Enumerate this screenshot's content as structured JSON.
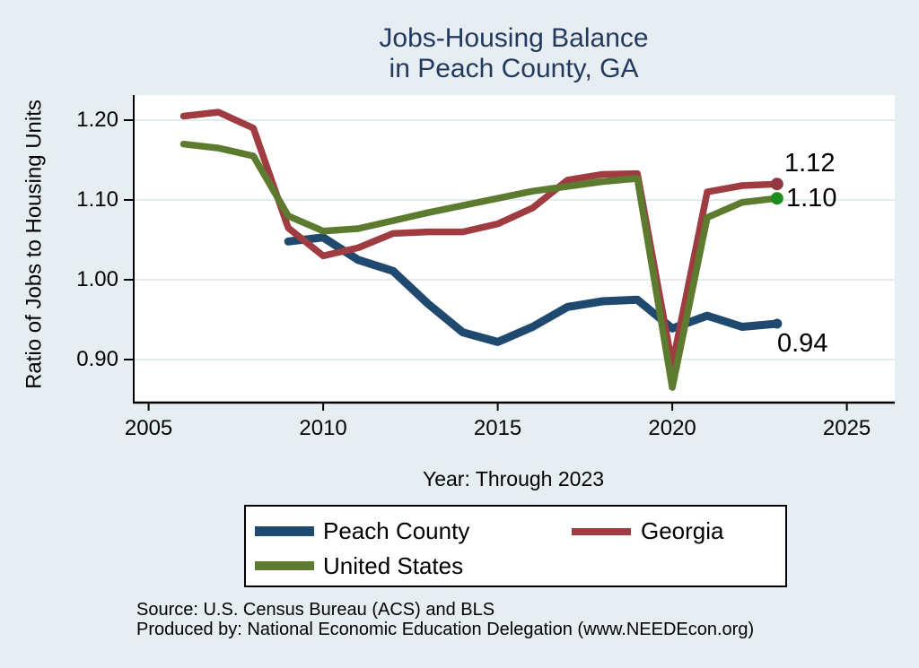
{
  "title": {
    "line1": "Jobs-Housing Balance",
    "line2": "in Peach County, GA"
  },
  "colors": {
    "background": "#e7eef1",
    "plot_background": "#ffffff",
    "gridline": "#e2ecef",
    "axis": "#000000",
    "title": "#24395f"
  },
  "chart_data": {
    "type": "line",
    "title": "Jobs-Housing Balance in Peach County, GA",
    "xlabel": "Year: Through 2023",
    "ylabel": "Ratio of Jobs to Housing Units",
    "grid": "horizontal",
    "legend_position": "bottom",
    "xlim": [
      2004.5,
      2026.4
    ],
    "ylim": [
      0.85,
      1.23
    ],
    "x_ticks": [
      "2005",
      "2010",
      "2015",
      "2020",
      "2025"
    ],
    "x_tick_values": [
      2005,
      2010,
      2015,
      2020,
      2025
    ],
    "y_ticks": [
      "0.90",
      "1.00",
      "1.10",
      "1.20"
    ],
    "y_tick_values": [
      0.9,
      1.0,
      1.1,
      1.2
    ],
    "x": [
      2006,
      2007,
      2008,
      2009,
      2010,
      2011,
      2012,
      2013,
      2014,
      2015,
      2016,
      2017,
      2018,
      2019,
      2020,
      2021,
      2022,
      2023
    ],
    "series": [
      {
        "name": "Peach County",
        "color": "#20496f",
        "marker_color": "#20496f",
        "values": [
          null,
          null,
          null,
          1.048,
          1.053,
          1.025,
          1.011,
          0.97,
          0.934,
          0.922,
          0.941,
          0.966,
          0.973,
          0.975,
          0.939,
          0.955,
          0.941,
          0.945
        ]
      },
      {
        "name": "Georgia",
        "color": "#9e3c41",
        "marker_color": "#8f3a42",
        "values": [
          1.205,
          1.21,
          1.19,
          1.065,
          1.03,
          1.04,
          1.058,
          1.06,
          1.06,
          1.07,
          1.09,
          1.125,
          1.132,
          1.133,
          0.893,
          1.11,
          1.118,
          1.12
        ]
      },
      {
        "name": "United States",
        "color": "#5d7b2e",
        "marker_color": "#1e8c1e",
        "values": [
          1.17,
          1.165,
          1.155,
          1.08,
          1.061,
          1.064,
          1.074,
          1.084,
          1.093,
          1.102,
          1.111,
          1.117,
          1.123,
          1.127,
          0.865,
          1.078,
          1.097,
          1.102
        ]
      }
    ],
    "end_labels": [
      {
        "text": "1.12",
        "series": "Georgia",
        "year": 2023
      },
      {
        "text": "1.10",
        "series": "United States",
        "year": 2023
      },
      {
        "text": "0.94",
        "series": "Peach County",
        "year": 2023
      }
    ]
  },
  "legend": {
    "items": [
      {
        "label": "Peach County",
        "color": "#20496f"
      },
      {
        "label": "Georgia",
        "color": "#9e3c41"
      },
      {
        "label": "United States",
        "color": "#5d7b2e"
      }
    ]
  },
  "footer": {
    "line1": "Source: U.S. Census Bureau (ACS) and BLS",
    "line2": "Produced by: National Economic Education Delegation (www.NEEDEcon.org)"
  }
}
